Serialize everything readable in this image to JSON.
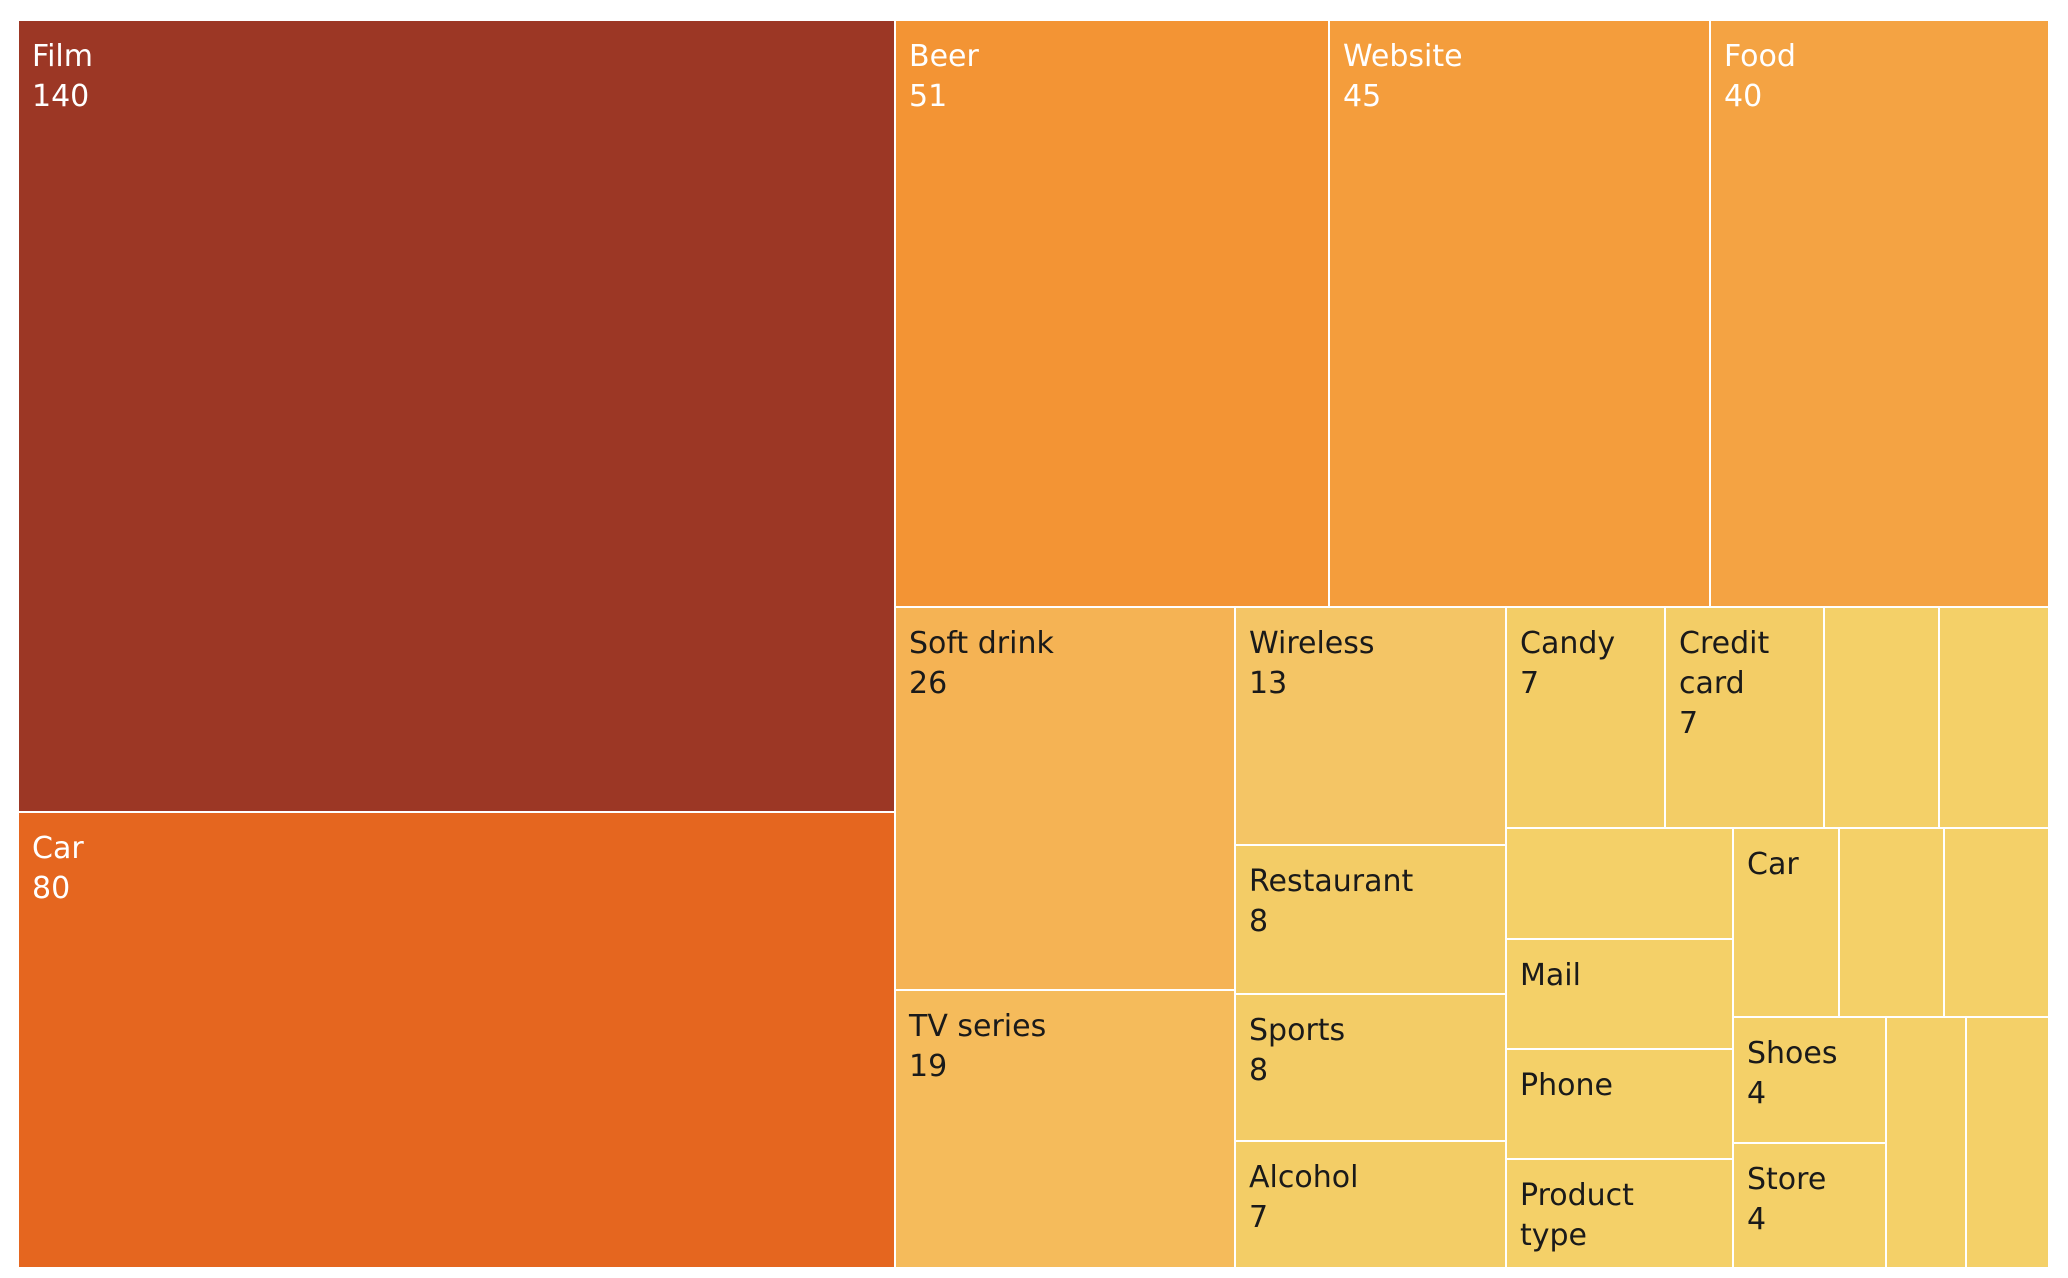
{
  "chart_data": {
    "type": "treemap",
    "tiles": [
      {
        "label": "Film",
        "value": 140,
        "color": "#9c3725"
      },
      {
        "label": "Car",
        "value": 80,
        "color": "#e5661f"
      },
      {
        "label": "Beer",
        "value": 51,
        "color": "#f39434"
      },
      {
        "label": "Website",
        "value": 45,
        "color": "#f49d3c"
      },
      {
        "label": "Food",
        "value": 40,
        "color": "#f4a343"
      },
      {
        "label": "Soft drink",
        "value": 26,
        "color": "#f5b354"
      },
      {
        "label": "TV series",
        "value": 19,
        "color": "#f5bb5b"
      },
      {
        "label": "Wireless",
        "value": 13,
        "color": "#f4c565"
      },
      {
        "label": "Restaurant",
        "value": 8,
        "color": "#f3cc66"
      },
      {
        "label": "Sports",
        "value": 8,
        "color": "#f3cc66"
      },
      {
        "label": "Alcohol",
        "value": 7,
        "color": "#f3cd66"
      },
      {
        "label": "Candy",
        "value": 7,
        "color": "#f3cd66"
      },
      {
        "label": "Credit card",
        "value": 7,
        "color": "#f3cd66"
      },
      {
        "label": "",
        "value": null,
        "color": "#f4d068"
      },
      {
        "label": "",
        "value": null,
        "color": "#f4d068"
      },
      {
        "label": "",
        "value": null,
        "color": "#f4d068"
      },
      {
        "label": "Mail",
        "value": null,
        "color": "#f4d068"
      },
      {
        "label": "Phone",
        "value": null,
        "color": "#f4d068"
      },
      {
        "label": "Product type",
        "value": null,
        "color": "#f4d068"
      },
      {
        "label": "Car",
        "value": null,
        "color": "#f4d068"
      },
      {
        "label": "",
        "value": null,
        "color": "#f4d068"
      },
      {
        "label": "",
        "value": null,
        "color": "#f4d068"
      },
      {
        "label": "Shoes",
        "value": 4,
        "color": "#f4d068"
      },
      {
        "label": "Store",
        "value": 4,
        "color": "#f4d068"
      },
      {
        "label": "",
        "value": null,
        "color": "#f4d068"
      },
      {
        "label": "",
        "value": null,
        "color": "#f4d068"
      }
    ],
    "text_color": "#ffffff",
    "text_color_light_tiles": "#1a1a1a"
  }
}
